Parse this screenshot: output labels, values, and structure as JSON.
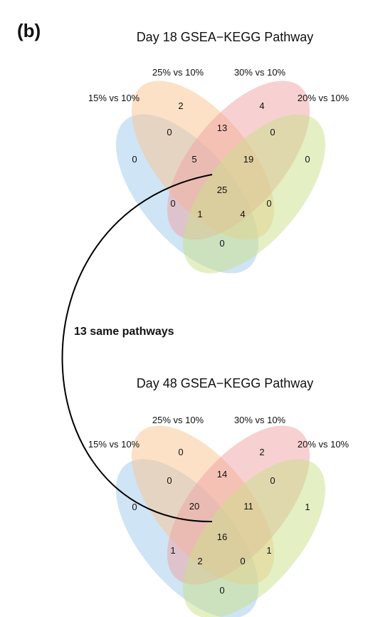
{
  "figure": {
    "panel_label": "(b)",
    "annotation": "13 same pathways",
    "colors": {
      "set_15": "#9fcaeb",
      "set_25": "#f9c48d",
      "set_30": "#f0a2a4",
      "set_20": "#c9df8a",
      "connector": "#000000"
    }
  },
  "day18": {
    "title": "Day 18 GSEA−KEGG Pathway",
    "sets": [
      "15% vs 10%",
      "25% vs 10%",
      "30% vs 10%",
      "20% vs 10%"
    ],
    "regions": {
      "A": "0",
      "B": "2",
      "C": "4",
      "D": "0",
      "AB": "0",
      "BC": "13",
      "CD": "0",
      "ABC": "5",
      "BCD": "19",
      "ABCD": "25",
      "AC": "0",
      "BD": "0",
      "ACD": "1",
      "ABD": "4",
      "AD": "0"
    }
  },
  "day48": {
    "title": "Day 48 GSEA−KEGG Pathway",
    "sets": [
      "15% vs 10%",
      "25% vs 10%",
      "30% vs 10%",
      "20% vs 10%"
    ],
    "regions": {
      "A": "0",
      "B": "0",
      "C": "2",
      "D": "1",
      "AB": "0",
      "BC": "14",
      "CD": "0",
      "ABC": "20",
      "BCD": "11",
      "ABCD": "16",
      "AC": "1",
      "BD": "1",
      "ACD": "2",
      "ABD": "0",
      "AD": "0"
    }
  }
}
